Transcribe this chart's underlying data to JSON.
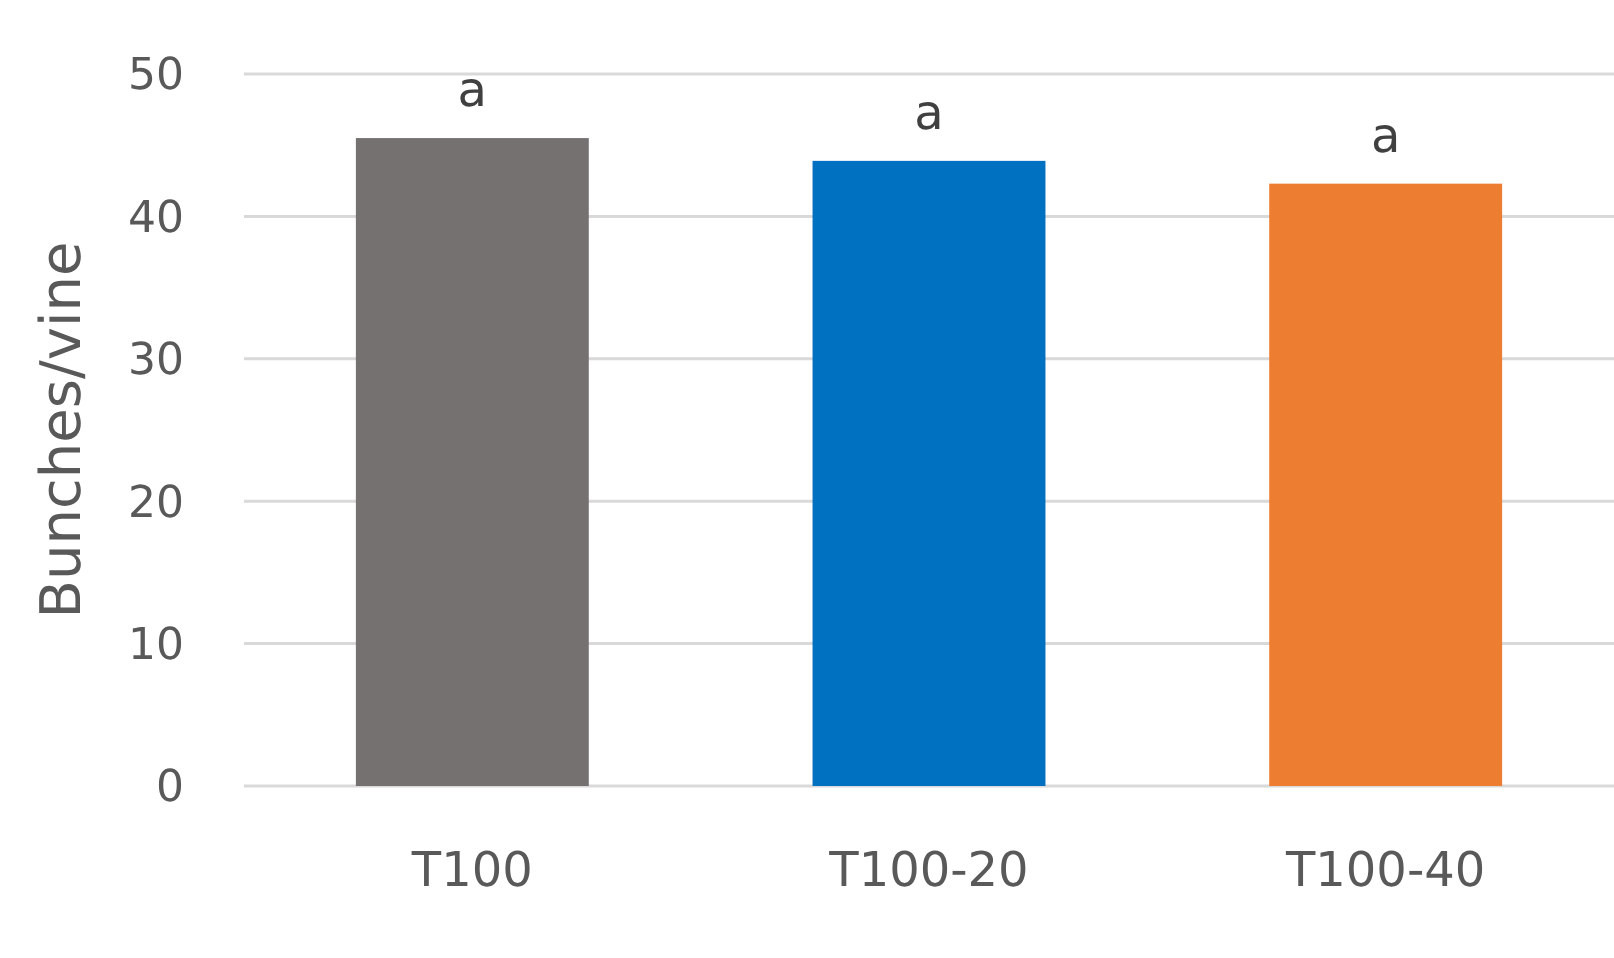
{
  "chart_data": {
    "type": "bar",
    "ylabel": "Bunches/vine",
    "categories": [
      "T100",
      "T100-20",
      "T100-40"
    ],
    "values": [
      45.5,
      43.9,
      42.3
    ],
    "colors": [
      "#767171",
      "#0070c0",
      "#ed7d31"
    ],
    "ylim": [
      0,
      50
    ],
    "yticks": [
      0,
      10,
      20,
      30,
      40,
      50
    ],
    "grid": "y",
    "annotations": [
      {
        "text": "a",
        "x": "T100",
        "y": 45.5
      },
      {
        "text": "a",
        "x": "T100-20",
        "y": 43.9
      },
      {
        "text": "a",
        "x": "T100-40",
        "y": 42.3
      }
    ]
  }
}
